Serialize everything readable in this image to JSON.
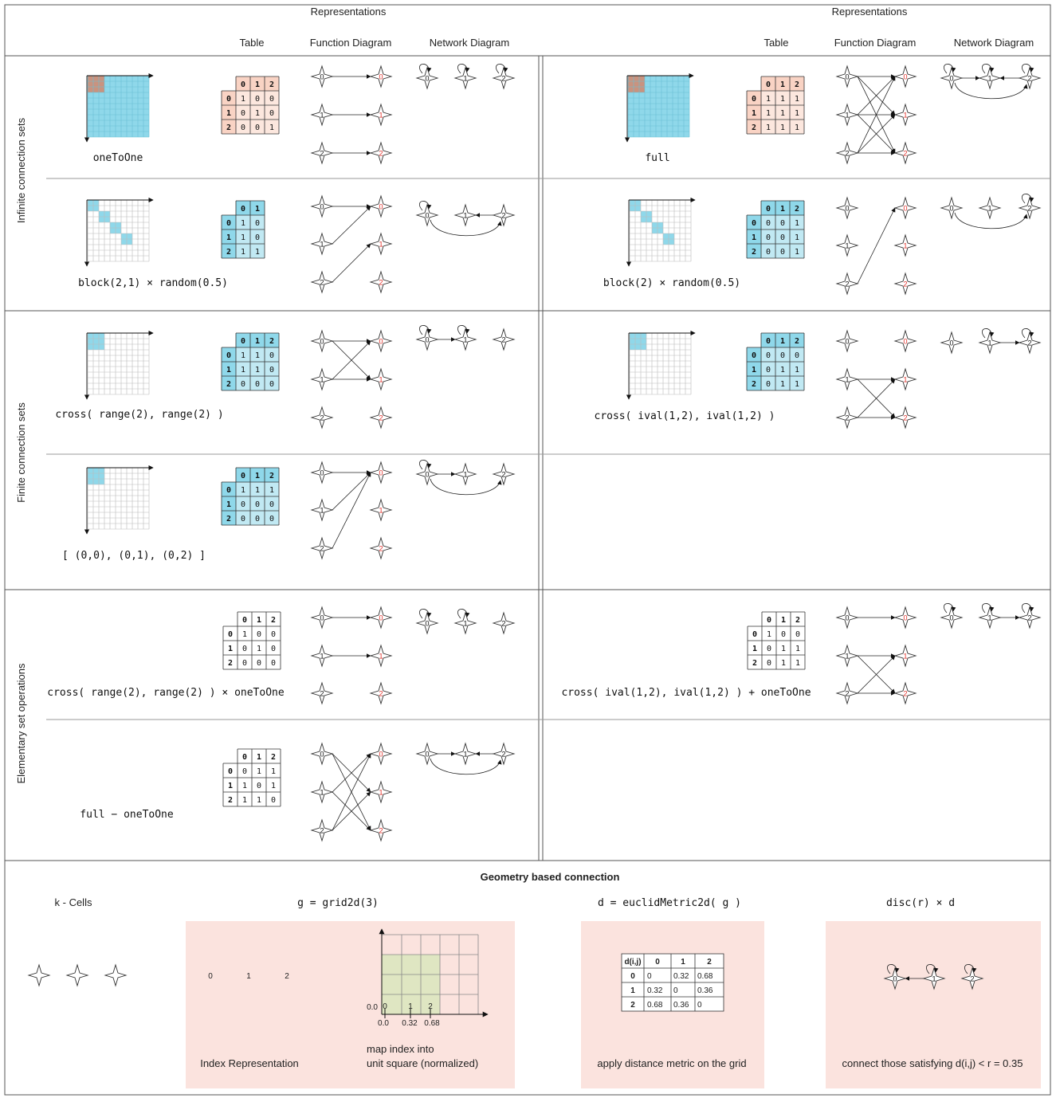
{
  "header": {
    "left": {
      "group": "Representations",
      "cols": [
        "Table",
        "Function Diagram",
        "Network Diagram"
      ]
    },
    "right": {
      "group": "Representations",
      "cols": [
        "Table",
        "Function Diagram",
        "Network Diagram"
      ]
    }
  },
  "sections": [
    {
      "label": "Infinite connection sets"
    },
    {
      "label": "Finite connection sets"
    },
    {
      "label": "Elementary set operations"
    }
  ],
  "colors": {
    "cyan": "#8fd8ea",
    "peach": "#f9d3c4",
    "brown": "#c9937f",
    "pink": "#fbe3de",
    "olive": "#dfe6c2",
    "red": "#e0302a"
  },
  "examples": [
    {
      "id": "oneToOne",
      "caption": "oneToOne",
      "matrix": [
        [
          1,
          0,
          0
        ],
        [
          0,
          1,
          0
        ],
        [
          0,
          0,
          1
        ]
      ],
      "table_color": "peach",
      "grid": "full-cyan"
    },
    {
      "id": "full",
      "caption": "full",
      "matrix": [
        [
          1,
          1,
          1
        ],
        [
          1,
          1,
          1
        ],
        [
          1,
          1,
          1
        ]
      ],
      "table_color": "peach",
      "grid": "full-cyan"
    },
    {
      "id": "block21",
      "caption": "block(2,1) × random(0.5)",
      "cols": 2,
      "matrix": [
        [
          1,
          0
        ],
        [
          1,
          0
        ],
        [
          1,
          1
        ]
      ],
      "table_color": "cyan",
      "grid": "diag"
    },
    {
      "id": "block2",
      "caption": "block(2) × random(0.5)",
      "matrix": [
        [
          0,
          0,
          1
        ],
        [
          0,
          0,
          1
        ],
        [
          0,
          0,
          1
        ]
      ],
      "table_color": "cyan",
      "grid": "diag"
    },
    {
      "id": "crossRange",
      "caption": "cross( range(2), range(2) )",
      "matrix": [
        [
          1,
          1,
          0
        ],
        [
          1,
          1,
          0
        ],
        [
          0,
          0,
          0
        ]
      ],
      "table_color": "cyan",
      "grid": "corner"
    },
    {
      "id": "crossIval",
      "caption": "cross( ival(1,2), ival(1,2) )",
      "matrix": [
        [
          0,
          0,
          0
        ],
        [
          0,
          1,
          1
        ],
        [
          0,
          1,
          1
        ]
      ],
      "table_color": "cyan",
      "grid": "corner"
    },
    {
      "id": "list",
      "caption": "[ (0,0), (0,1), (0,2) ]",
      "matrix": [
        [
          1,
          1,
          1
        ],
        [
          0,
          0,
          0
        ],
        [
          0,
          0,
          0
        ]
      ],
      "table_color": "cyan",
      "grid": "corner"
    },
    {
      "id": "crossRangeOne",
      "caption": "cross( range(2), range(2) ) × oneToOne",
      "matrix": [
        [
          1,
          0,
          0
        ],
        [
          0,
          1,
          0
        ],
        [
          0,
          0,
          0
        ]
      ],
      "table_color": "white"
    },
    {
      "id": "crossIvalOne",
      "caption": "cross( ival(1,2), ival(1,2) ) + oneToOne",
      "matrix": [
        [
          1,
          0,
          0
        ],
        [
          0,
          1,
          1
        ],
        [
          0,
          1,
          1
        ]
      ],
      "table_color": "white"
    },
    {
      "id": "fullMinus",
      "caption": "full − oneToOne",
      "matrix": [
        [
          0,
          1,
          1
        ],
        [
          1,
          0,
          1
        ],
        [
          1,
          1,
          0
        ]
      ],
      "table_color": "white"
    }
  ],
  "geometry": {
    "title": "Geometry based connection",
    "kcells": {
      "label": "k - Cells"
    },
    "grid": {
      "label": "g = grid2d(3)",
      "index_labels": [
        "0",
        "1",
        "2"
      ],
      "caption1": "Index Representation",
      "caption2a": "map index into",
      "caption2b": "unit square (normalized)",
      "axis_values": [
        "0.0",
        "0.32",
        "0.68"
      ],
      "y_label": "0.0",
      "point_labels": [
        "0",
        "1",
        "2"
      ]
    },
    "metric": {
      "label": "d = euclidMetric2d( g )",
      "corner": "d(i,j)",
      "headers": [
        "0",
        "1",
        "2"
      ],
      "rows": [
        [
          "0",
          "0.32",
          "0.68"
        ],
        [
          "0.32",
          "0",
          "0.36"
        ],
        [
          "0.68",
          "0.36",
          "0"
        ]
      ],
      "caption": "apply distance metric on the grid"
    },
    "disc": {
      "label": "disc(r) × d",
      "caption": "connect those satisfying d(i,j) < r = 0.35"
    }
  }
}
